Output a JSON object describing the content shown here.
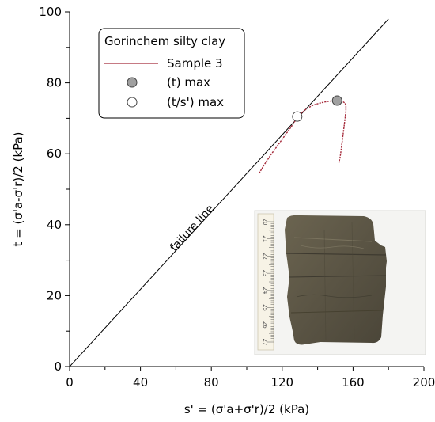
{
  "chart_data": {
    "type": "scatter",
    "xlabel": "s' = (σ'a+σ'r)/2 (kPa)",
    "ylabel": "t = (σ'a-σ'r)/2 (kPa)",
    "xlim": [
      0,
      200
    ],
    "ylim": [
      0,
      100
    ],
    "x_ticks": [
      0,
      40,
      80,
      120,
      160,
      200
    ],
    "y_ticks": [
      0,
      20,
      40,
      60,
      80,
      100
    ],
    "x_minor_step": 20,
    "y_minor_step": 10,
    "grid": false,
    "legend": {
      "placement": "top-left",
      "title": "Gorinchem silty clay",
      "entries": [
        {
          "label": "Sample 3",
          "marker": "line",
          "color": "#a52a3a"
        },
        {
          "label": "(t) max",
          "marker": "filled-circle",
          "color": "#a0a0a0"
        },
        {
          "label": "(t/s') max",
          "marker": "open-circle",
          "color": "#ffffff"
        }
      ]
    },
    "series": [
      {
        "name": "Sample 3",
        "color": "#a52a3a",
        "x": [
          107,
          110,
          114,
          118,
          122,
          125,
          128,
          131,
          134,
          137,
          140,
          143,
          146,
          149,
          151,
          153,
          154.5,
          155.5,
          156,
          156,
          155.5,
          155,
          154.5,
          154,
          153.5,
          153,
          152.5,
          152
        ],
        "y": [
          54.5,
          57,
          60,
          62.7,
          65.5,
          67.5,
          69.8,
          71.5,
          72.8,
          73.6,
          74.1,
          74.5,
          74.8,
          75,
          75,
          74.8,
          74.6,
          74.3,
          73.5,
          72,
          70,
          68,
          66,
          64,
          62,
          60,
          58.5,
          57.5
        ]
      },
      {
        "name": "failure line",
        "color": "#000000",
        "x": [
          0,
          180
        ],
        "y": [
          0,
          98
        ]
      }
    ],
    "points": [
      {
        "name": "(t) max",
        "x": 151,
        "y": 75,
        "fill": "#a0a0a0"
      },
      {
        "name": "(t/s') max",
        "x": 128.5,
        "y": 70.5,
        "fill": "#ffffff"
      }
    ],
    "annotations": [
      {
        "text": "failure line",
        "x": 67,
        "y": 37.5,
        "rotate_with_line": true
      }
    ],
    "photo": {
      "subject": "soil-sample-photo",
      "ruler_numbers": [
        "20",
        "21",
        "22",
        "23",
        "24",
        "25",
        "26",
        "27"
      ]
    }
  }
}
